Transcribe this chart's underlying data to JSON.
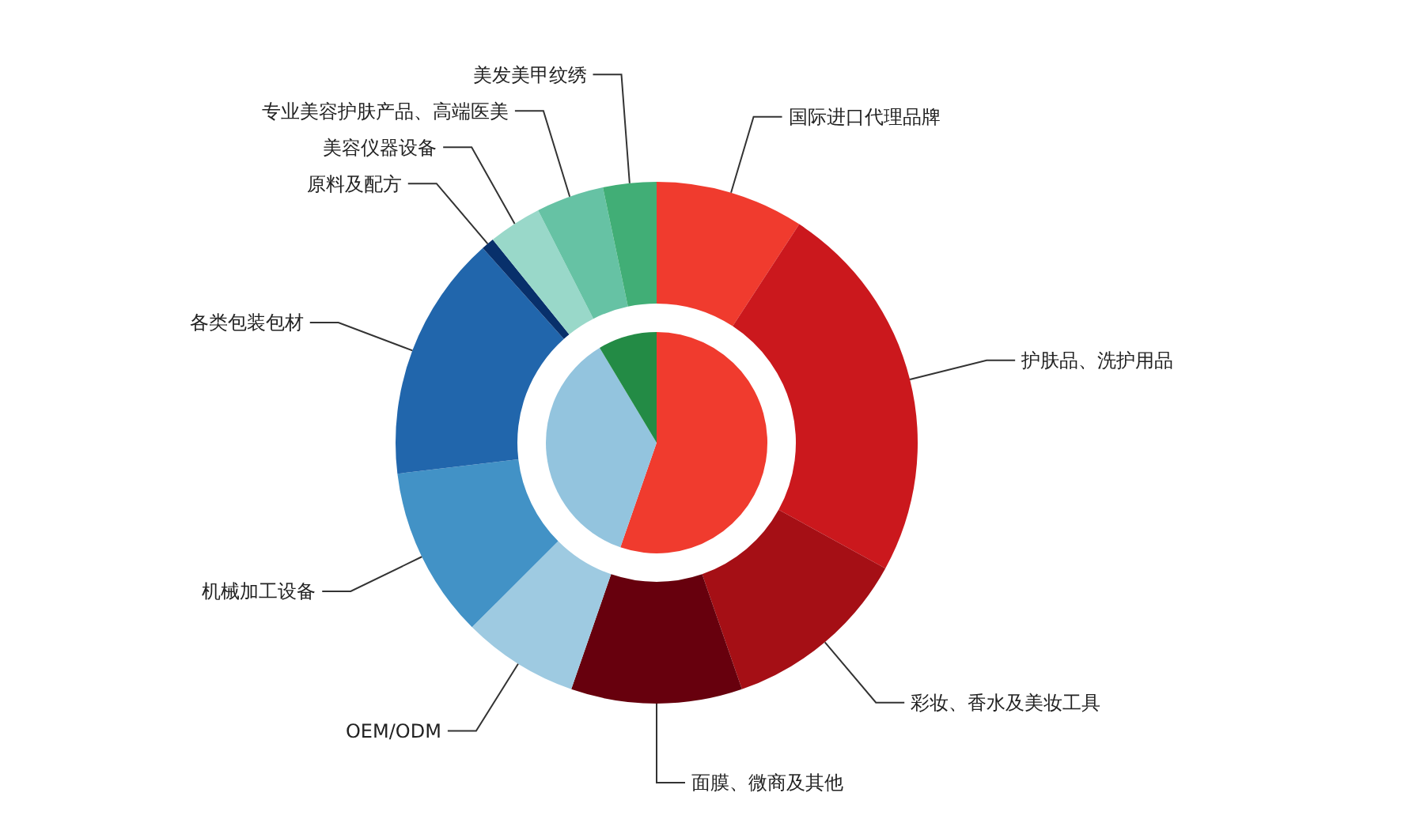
{
  "chart_data": [
    {
      "type": "donut",
      "categories": [
        "国际进口代理品牌",
        "护肤品、洗护用品",
        "彩妆、香水及美妆工具",
        "面膜、微商及其他",
        "OEM/ODM",
        "机械加工设备",
        "各类包装包材",
        "原料及配方",
        "美容仪器设备",
        "专业美容护肤产品、高端医美",
        "美发美甲纹绣"
      ],
      "values": [
        9.2,
        23.8,
        11.7,
        10.6,
        7.2,
        10.6,
        15.3,
        0.8,
        3.3,
        4.2,
        3.3
      ],
      "colors": [
        "#f03b2e",
        "#cb181d",
        "#a50f15",
        "#67000d",
        "#9ecae1",
        "#4292c6",
        "#2166ac",
        "#08306b",
        "#99d8c9",
        "#66c2a4",
        "#41ae76"
      ]
    },
    {
      "type": "pie",
      "categories": [
        null,
        null,
        null
      ],
      "values": [
        55.3,
        36.1,
        8.6
      ],
      "colors": [
        "#f03b2e",
        "#93c4de",
        "#238b45"
      ]
    }
  ]
}
